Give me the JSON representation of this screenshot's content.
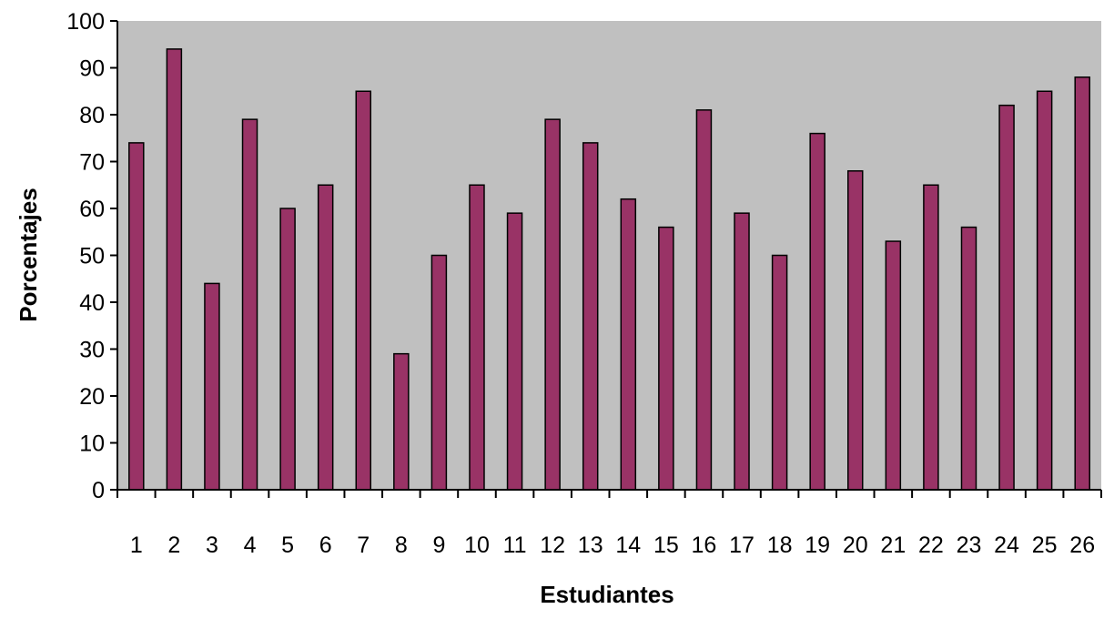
{
  "chart_data": {
    "type": "bar",
    "title": "",
    "xlabel": "Estudiantes",
    "ylabel": "Porcentajes",
    "ylim": [
      0,
      100
    ],
    "yticks": [
      0,
      10,
      20,
      30,
      40,
      50,
      60,
      70,
      80,
      90,
      100
    ],
    "categories": [
      "1",
      "2",
      "3",
      "4",
      "5",
      "6",
      "7",
      "8",
      "9",
      "10",
      "11",
      "12",
      "13",
      "14",
      "15",
      "16",
      "17",
      "18",
      "19",
      "20",
      "21",
      "22",
      "23",
      "24",
      "25",
      "26"
    ],
    "values": [
      74,
      94,
      44,
      79,
      60,
      65,
      85,
      29,
      50,
      65,
      59,
      79,
      74,
      62,
      56,
      81,
      59,
      50,
      76,
      68,
      53,
      65,
      56,
      82,
      85,
      88
    ],
    "grid": false,
    "legend": "none",
    "colors": {
      "plot_background": "#c0c0c0",
      "bar_fill": "#993366",
      "bar_stroke": "#000000",
      "axis": "#000000"
    }
  }
}
